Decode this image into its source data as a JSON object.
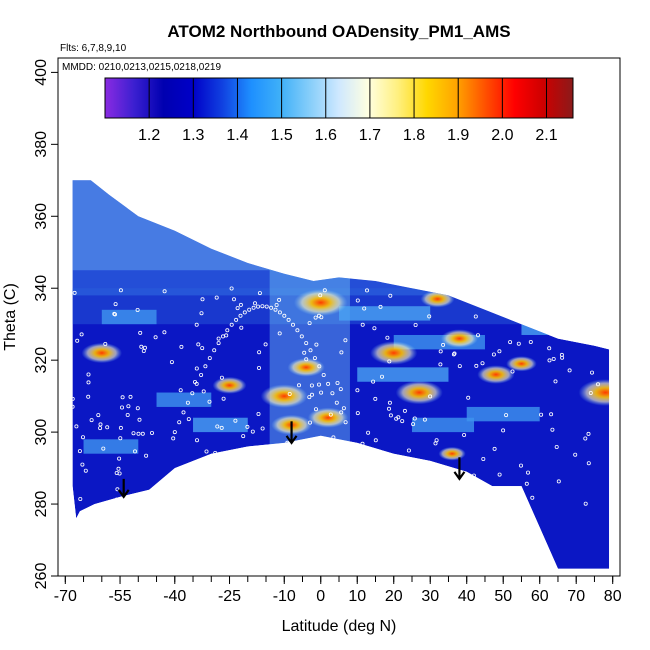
{
  "chart_data": {
    "type": "heatmap",
    "title": "ATOM2 Northbound OADensity_PM1_AMS",
    "subtitle_flights": "Flts: 6,7,8,9,10",
    "subtitle_dates": "MMDD: 0210,0213,0215,0218,0219",
    "xlabel": "Latitude (deg N)",
    "ylabel": "Theta (C)",
    "xlim": [
      -72,
      82
    ],
    "ylim": [
      260,
      404
    ],
    "x_ticks": [
      "-70",
      "-55",
      "-40",
      "-25",
      "-10",
      "0",
      "10",
      "20",
      "30",
      "40",
      "50",
      "60",
      "70",
      "80"
    ],
    "y_ticks": [
      "260",
      "280",
      "300",
      "320",
      "340",
      "360",
      "380",
      "400"
    ],
    "colorbar": {
      "range": [
        1.1,
        2.16
      ],
      "ticks": [
        "1.2",
        "1.3",
        "1.4",
        "1.5",
        "1.6",
        "1.7",
        "1.8",
        "1.9",
        "2.0",
        "2.1"
      ],
      "colors": [
        "#8a2be2",
        "#3a1fd0",
        "#0000b0",
        "#0000c8",
        "#1040e0",
        "#1e90ff",
        "#3fb0f8",
        "#87cefa",
        "#cfe8ff",
        "#ffffe0",
        "#fff080",
        "#ffd700",
        "#ffa500",
        "#ff5000",
        "#ff0000",
        "#cc0000",
        "#8b1a1a"
      ]
    },
    "domain_top": [
      [
        -68,
        370
      ],
      [
        -63,
        370
      ],
      [
        -58,
        366
      ],
      [
        -50,
        360
      ],
      [
        -40,
        356
      ],
      [
        -30,
        351
      ],
      [
        -20,
        347
      ],
      [
        -10,
        344
      ],
      [
        -2,
        342
      ],
      [
        5,
        343
      ],
      [
        15,
        342
      ],
      [
        25,
        340
      ],
      [
        35,
        338
      ],
      [
        45,
        334
      ],
      [
        55,
        330
      ],
      [
        65,
        326
      ],
      [
        75,
        324
      ],
      [
        79,
        323
      ]
    ],
    "domain_bottom": [
      [
        79,
        262
      ],
      [
        75,
        262
      ],
      [
        65,
        262
      ],
      [
        55,
        285
      ],
      [
        47,
        285
      ],
      [
        40,
        289
      ],
      [
        30,
        292
      ],
      [
        20,
        294
      ],
      [
        10,
        297
      ],
      [
        0,
        299
      ],
      [
        -10,
        297
      ],
      [
        -20,
        296
      ],
      [
        -30,
        294
      ],
      [
        -40,
        290
      ],
      [
        -47,
        284
      ],
      [
        -55,
        282
      ],
      [
        -62,
        280
      ],
      [
        -66,
        278
      ],
      [
        -67,
        276
      ],
      [
        -68,
        285
      ]
    ],
    "hotspots": [
      {
        "lat": -10,
        "theta": 310,
        "value": 1.95
      },
      {
        "lat": -8,
        "theta": 302,
        "value": 1.85
      },
      {
        "lat": -4,
        "theta": 318,
        "value": 1.8
      },
      {
        "lat": 2,
        "theta": 304,
        "value": 1.85
      },
      {
        "lat": 0,
        "theta": 336,
        "value": 2.05
      },
      {
        "lat": -60,
        "theta": 322,
        "value": 1.85
      },
      {
        "lat": -25,
        "theta": 313,
        "value": 1.75
      },
      {
        "lat": 20,
        "theta": 322,
        "value": 1.95
      },
      {
        "lat": 27,
        "theta": 311,
        "value": 1.95
      },
      {
        "lat": 38,
        "theta": 326,
        "value": 1.8
      },
      {
        "lat": 32,
        "theta": 337,
        "value": 1.75
      },
      {
        "lat": 48,
        "theta": 316,
        "value": 1.8
      },
      {
        "lat": 78,
        "theta": 311,
        "value": 2.05
      },
      {
        "lat": 55,
        "theta": 319,
        "value": 1.7
      },
      {
        "lat": 36,
        "theta": 294,
        "value": 1.65
      }
    ],
    "arrows": [
      {
        "lat": -54,
        "theta_from": 287,
        "theta_to": 282
      },
      {
        "lat": -8,
        "theta_from": 303,
        "theta_to": 297
      },
      {
        "lat": 38,
        "theta_from": 293,
        "theta_to": 287
      }
    ]
  }
}
